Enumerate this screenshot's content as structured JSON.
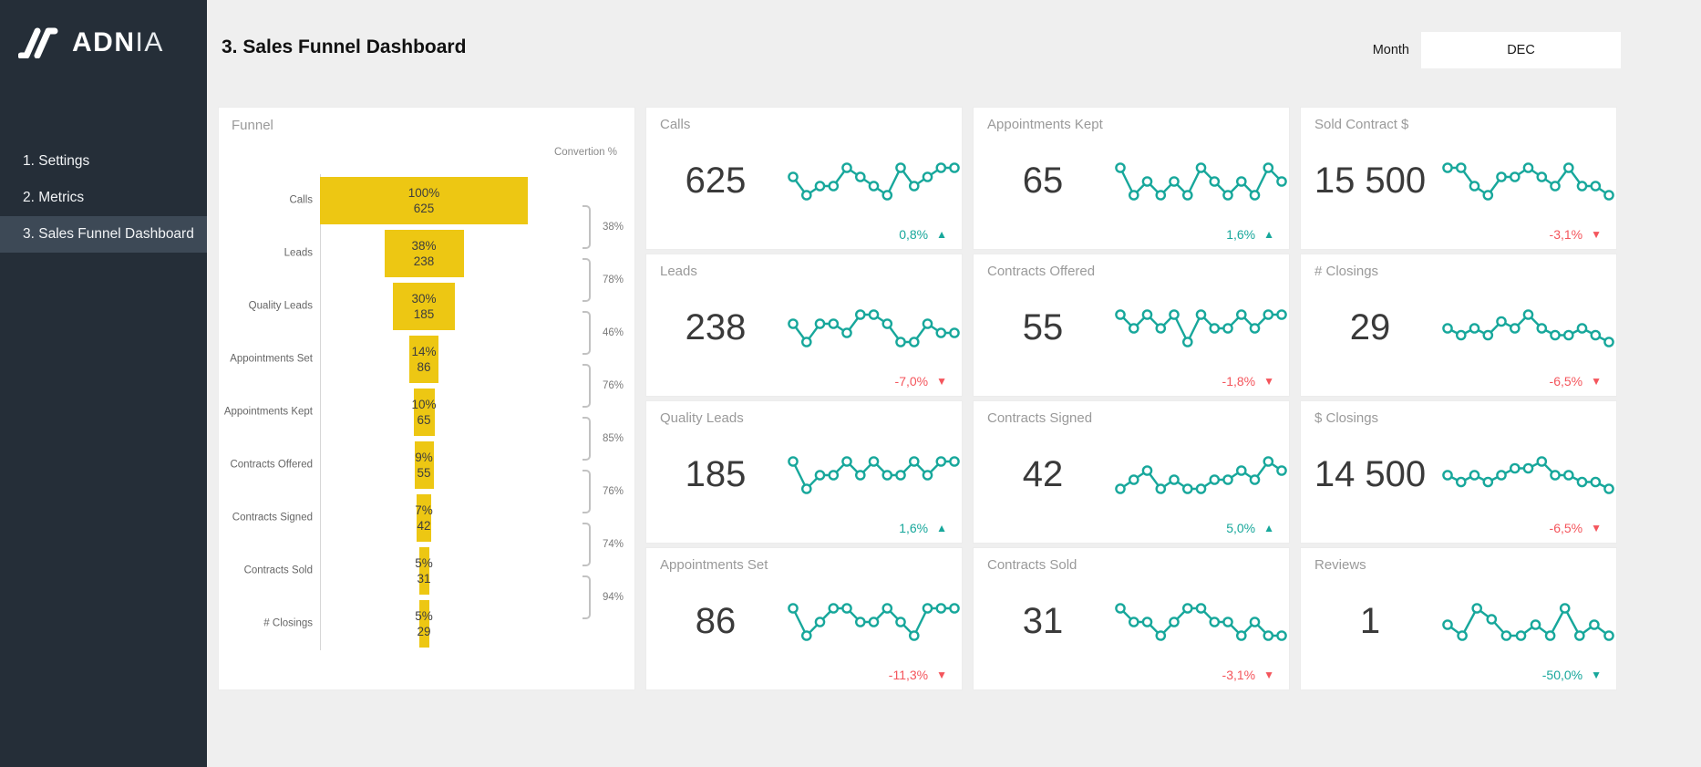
{
  "colors": {
    "teal": "#17A79B",
    "red": "#F4555C",
    "funnel_yellow": "#EDC713",
    "sidebar_bg": "#252E38",
    "sidebar_active": "#3D4956"
  },
  "sidebar": {
    "logo_bold": "ADN",
    "logo_light": "IA",
    "items": [
      {
        "label": "1. Settings",
        "active": false
      },
      {
        "label": "2. Metrics",
        "active": false
      },
      {
        "label": "3. Sales Funnel Dashboard",
        "active": true
      }
    ]
  },
  "header": {
    "title": "3. Sales Funnel Dashboard",
    "month_label": "Month",
    "month_value": "DEC"
  },
  "funnel": {
    "title": "Funnel",
    "conversion_header": "Convertion %",
    "stages": [
      {
        "label": "Calls",
        "pct": "100%",
        "value": "625",
        "pct_num": 100
      },
      {
        "label": "Leads",
        "pct": "38%",
        "value": "238",
        "pct_num": 38
      },
      {
        "label": "Quality Leads",
        "pct": "30%",
        "value": "185",
        "pct_num": 30
      },
      {
        "label": "Appointments Set",
        "pct": "14%",
        "value": "86",
        "pct_num": 14
      },
      {
        "label": "Appointments Kept",
        "pct": "10%",
        "value": "65",
        "pct_num": 10
      },
      {
        "label": "Contracts Offered",
        "pct": "9%",
        "value": "55",
        "pct_num": 9
      },
      {
        "label": "Contracts Signed",
        "pct": "7%",
        "value": "42",
        "pct_num": 7
      },
      {
        "label": "Contracts Sold",
        "pct": "5%",
        "value": "31",
        "pct_num": 5
      },
      {
        "label": "# Closings",
        "pct": "5%",
        "value": "29",
        "pct_num": 5
      }
    ],
    "conversions": [
      "38%",
      "78%",
      "46%",
      "76%",
      "85%",
      "76%",
      "74%",
      "94%"
    ]
  },
  "kpi_cards": [
    {
      "title": "Calls",
      "value": "625",
      "change": "0,8%",
      "direction": "up",
      "color": "teal",
      "sparkline": [
        5,
        3,
        4,
        4,
        6,
        5,
        4,
        3,
        6,
        4,
        5,
        6,
        6
      ]
    },
    {
      "title": "Appointments Kept",
      "value": "65",
      "change": "1,6%",
      "direction": "up",
      "color": "teal",
      "sparkline": [
        6,
        4,
        5,
        4,
        5,
        4,
        6,
        5,
        4,
        5,
        4,
        6,
        5
      ]
    },
    {
      "title": "Sold Contract $",
      "value": "15 500",
      "change": "-3,1%",
      "direction": "down",
      "color": "red",
      "sparkline": [
        7,
        7,
        5,
        4,
        6,
        6,
        7,
        6,
        5,
        7,
        5,
        5,
        4
      ]
    },
    {
      "title": "Leads",
      "value": "238",
      "change": "-7,0%",
      "direction": "down",
      "color": "red",
      "sparkline": [
        5,
        3,
        5,
        5,
        4,
        6,
        6,
        5,
        3,
        3,
        5,
        4,
        4
      ]
    },
    {
      "title": "Contracts Offered",
      "value": "55",
      "change": "-1,8%",
      "direction": "down",
      "color": "red",
      "sparkline": [
        5,
        4,
        5,
        4,
        5,
        3,
        5,
        4,
        4,
        5,
        4,
        5,
        5
      ]
    },
    {
      "title": "# Closings",
      "value": "29",
      "change": "-6,5%",
      "direction": "down",
      "color": "red",
      "sparkline": [
        5,
        4,
        5,
        4,
        6,
        5,
        7,
        5,
        4,
        4,
        5,
        4,
        3
      ]
    },
    {
      "title": "Quality Leads",
      "value": "185",
      "change": "1,6%",
      "direction": "up",
      "color": "teal",
      "sparkline": [
        5,
        3,
        4,
        4,
        5,
        4,
        5,
        4,
        4,
        5,
        4,
        5,
        5
      ]
    },
    {
      "title": "Contracts Signed",
      "value": "42",
      "change": "5,0%",
      "direction": "up",
      "color": "teal",
      "sparkline": [
        4,
        5,
        6,
        4,
        5,
        4,
        4,
        5,
        5,
        6,
        5,
        7,
        6
      ]
    },
    {
      "title": "$ Closings",
      "value": "14 500",
      "change": "-6,5%",
      "direction": "down",
      "color": "red",
      "sparkline": [
        5,
        4,
        5,
        4,
        5,
        6,
        6,
        7,
        5,
        5,
        4,
        4,
        3
      ]
    },
    {
      "title": "Appointments Set",
      "value": "86",
      "change": "-11,3%",
      "direction": "down",
      "color": "red",
      "sparkline": [
        5,
        3,
        4,
        5,
        5,
        4,
        4,
        5,
        4,
        3,
        5,
        5,
        5
      ]
    },
    {
      "title": "Contracts Sold",
      "value": "31",
      "change": "-3,1%",
      "direction": "down",
      "color": "red",
      "sparkline": [
        6,
        5,
        5,
        4,
        5,
        6,
        6,
        5,
        5,
        4,
        5,
        4,
        4
      ]
    },
    {
      "title": "Reviews",
      "value": "1",
      "change": "-50,0%",
      "direction": "down",
      "color": "teal",
      "sparkline": [
        4,
        2,
        7,
        5,
        2,
        2,
        4,
        2,
        7,
        2,
        4,
        2
      ]
    }
  ]
}
